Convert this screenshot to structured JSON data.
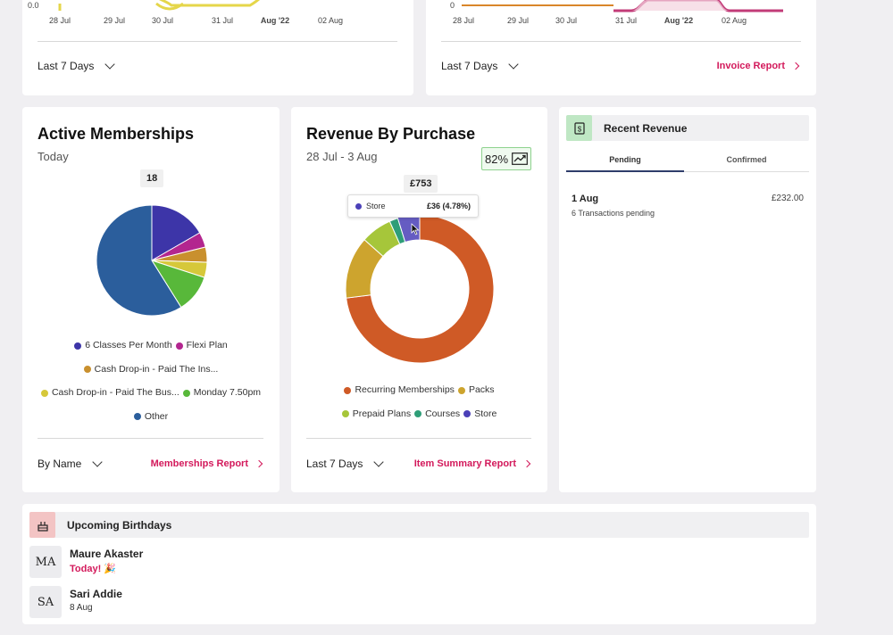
{
  "top_left": {
    "y_tick": "0.0",
    "x_ticks": [
      "28 Jul",
      "29 Jul",
      "30 Jul",
      "31 Jul",
      "Aug '22",
      "02 Aug"
    ],
    "range_label": "Last 7 Days"
  },
  "top_right": {
    "y_tick": "0",
    "x_ticks": [
      "28 Jul",
      "29 Jul",
      "30 Jul",
      "31 Jul",
      "Aug '22",
      "02 Aug"
    ],
    "range_label": "Last 7 Days",
    "report_link": "Invoice Report"
  },
  "memberships": {
    "title": "Active Memberships",
    "subtitle": "Today",
    "count_badge": "18",
    "legend": [
      "6 Classes Per Month",
      "Flexi Plan",
      "Cash Drop-in - Paid The Ins...",
      "Cash Drop-in - Paid The Bus...",
      "Monday 7.50pm",
      "Other"
    ],
    "group_by": "By Name",
    "report_link": "Memberships Report"
  },
  "revenue_purchase": {
    "title": "Revenue By Purchase",
    "subtitle": "28 Jul - 3 Aug",
    "trend_pct": "82%",
    "total_badge": "£753",
    "tooltip": {
      "label": "Store",
      "value": "£36 (4.78%)"
    },
    "range_label": "Last 7 Days",
    "report_link": "Item Summary Report"
  },
  "recent_revenue": {
    "title": "Recent Revenue",
    "tabs": [
      "Pending",
      "Confirmed"
    ],
    "active_tab": 0,
    "items": [
      {
        "date": "1 Aug",
        "amount": "£232.00",
        "detail": "6 Transactions pending"
      }
    ]
  },
  "birthdays": {
    "title": "Upcoming Birthdays",
    "people": [
      {
        "initials": "MA",
        "name": "Maure Akaster",
        "when": "Today! 🎉"
      },
      {
        "initials": "SA",
        "name": "Sari Addie",
        "when": "8 Aug"
      }
    ]
  },
  "chart_data": [
    {
      "type": "pie",
      "title": "Active Memberships",
      "categories": [
        "6 Classes Per Month",
        "Flexi Plan",
        "Cash Drop-in - Paid The Ins...",
        "Cash Drop-in - Paid The Bus...",
        "Monday 7.50pm",
        "Other"
      ],
      "values": [
        3,
        0.8,
        0.8,
        0.8,
        2,
        10.6
      ],
      "colors": [
        "#3d35a8",
        "#b3268f",
        "#c9902e",
        "#d6c83a",
        "#58b83a",
        "#2b5e9c"
      ]
    },
    {
      "type": "pie",
      "title": "Revenue By Purchase",
      "categories": [
        "Recurring Memberships",
        "Packs",
        "Prepaid Plans",
        "Courses",
        "Store"
      ],
      "values": [
        550,
        102,
        51,
        14,
        36
      ],
      "colors": [
        "#cf5a26",
        "#cda42e",
        "#a6c63a",
        "#2f9e78",
        "#4b40b8"
      ]
    }
  ],
  "colors": {
    "accent": "#d3195b",
    "top_left_line": "#e5d64a",
    "top_right_line": "#c23b78"
  }
}
